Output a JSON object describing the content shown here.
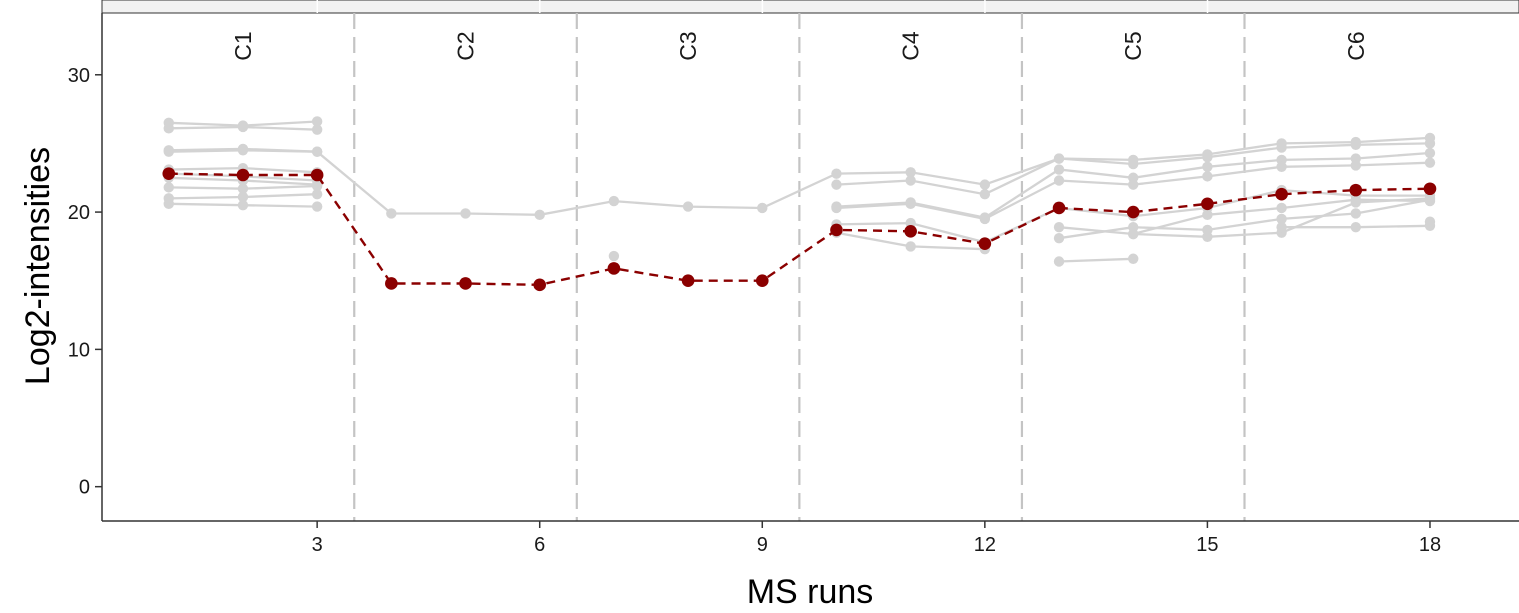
{
  "chart_data": {
    "type": "line",
    "title": "",
    "xlabel": "MS runs",
    "ylabel": "Log2-intensities",
    "xlim": [
      0.1,
      19.2
    ],
    "ylim": [
      -2.5,
      34.5
    ],
    "x_ticks": [
      3,
      6,
      9,
      12,
      15,
      18
    ],
    "y_ticks": [
      0,
      10,
      20,
      30
    ],
    "grid": false,
    "strip_band": true,
    "conditions": [
      {
        "label": "C1",
        "center": 2
      },
      {
        "label": "C2",
        "center": 5
      },
      {
        "label": "C3",
        "center": 8
      },
      {
        "label": "C4",
        "center": 11
      },
      {
        "label": "C5",
        "center": 14
      },
      {
        "label": "C6",
        "center": 17
      }
    ],
    "condition_boundaries": [
      3.5,
      6.5,
      9.5,
      12.5,
      15.5
    ],
    "feature_color": "#d3d3d3",
    "summary_color": "#8b0000",
    "features": [
      {
        "points": [
          [
            1,
            26.5
          ],
          [
            2,
            26.3
          ],
          [
            3,
            26.6
          ]
        ]
      },
      {
        "points": [
          [
            1,
            26.1
          ],
          [
            2,
            26.2
          ],
          [
            3,
            26.0
          ]
        ]
      },
      {
        "points": [
          [
            1,
            24.5
          ],
          [
            2,
            24.6
          ],
          [
            3,
            24.4
          ]
        ]
      },
      {
        "points": [
          [
            1,
            24.4
          ],
          [
            2,
            24.5
          ],
          [
            3,
            24.4
          ],
          [
            4,
            19.9
          ],
          [
            5,
            19.9
          ],
          [
            6,
            19.8
          ],
          [
            7,
            20.8
          ],
          [
            8,
            20.4
          ],
          [
            9,
            20.3
          ],
          [
            10,
            22.8
          ],
          [
            11,
            22.9
          ],
          [
            12,
            22.0
          ],
          [
            13,
            23.9
          ],
          [
            14,
            23.8
          ],
          [
            15,
            24.2
          ],
          [
            16,
            25.0
          ],
          [
            17,
            25.1
          ],
          [
            18,
            25.4
          ]
        ]
      },
      {
        "points": [
          [
            1,
            23.1
          ],
          [
            2,
            23.2
          ],
          [
            3,
            22.9
          ]
        ]
      },
      {
        "points": [
          [
            1,
            22.8
          ],
          [
            2,
            22.6
          ],
          [
            3,
            22.3
          ]
        ]
      },
      {
        "points": [
          [
            1,
            22.5
          ],
          [
            2,
            22.3
          ],
          [
            3,
            22.0
          ]
        ]
      },
      {
        "points": [
          [
            1,
            21.8
          ],
          [
            2,
            21.7
          ],
          [
            3,
            21.9
          ]
        ]
      },
      {
        "points": [
          [
            1,
            21.0
          ],
          [
            2,
            21.1
          ],
          [
            3,
            21.3
          ]
        ]
      },
      {
        "points": [
          [
            1,
            20.6
          ],
          [
            2,
            20.5
          ],
          [
            3,
            20.4
          ]
        ]
      },
      {
        "points": [
          [
            7,
            16.8
          ]
        ]
      },
      {
        "points": [
          [
            7,
            15.8
          ]
        ]
      },
      {
        "points": [
          [
            10,
            22.0
          ],
          [
            11,
            22.3
          ],
          [
            12,
            21.3
          ],
          [
            13,
            23.9
          ],
          [
            14,
            23.5
          ],
          [
            15,
            24.0
          ],
          [
            16,
            24.7
          ],
          [
            17,
            24.9
          ],
          [
            18,
            25.0
          ]
        ]
      },
      {
        "points": [
          [
            10,
            20.4
          ],
          [
            11,
            20.7
          ],
          [
            12,
            19.6
          ],
          [
            13,
            23.1
          ],
          [
            14,
            22.5
          ],
          [
            15,
            23.3
          ],
          [
            16,
            23.8
          ],
          [
            17,
            23.9
          ],
          [
            18,
            24.3
          ]
        ]
      },
      {
        "points": [
          [
            10,
            20.3
          ],
          [
            11,
            20.6
          ],
          [
            12,
            19.5
          ],
          [
            13,
            22.3
          ],
          [
            14,
            22.0
          ],
          [
            15,
            22.6
          ],
          [
            16,
            23.3
          ],
          [
            17,
            23.4
          ],
          [
            18,
            23.6
          ]
        ]
      },
      {
        "points": [
          [
            10,
            19.1
          ],
          [
            11,
            19.2
          ],
          [
            12,
            17.8
          ],
          [
            13,
            20.3
          ],
          [
            14,
            19.7
          ],
          [
            15,
            20.3
          ],
          [
            16,
            21.6
          ],
          [
            17,
            21.2
          ],
          [
            18,
            21.2
          ]
        ]
      },
      {
        "points": [
          [
            10,
            18.5
          ],
          [
            11,
            17.5
          ],
          [
            12,
            17.3
          ]
        ]
      },
      {
        "points": [
          [
            13,
            18.9
          ],
          [
            14,
            18.4
          ],
          [
            15,
            19.8
          ],
          [
            16,
            20.3
          ],
          [
            17,
            20.9
          ],
          [
            18,
            20.8
          ]
        ]
      },
      {
        "points": [
          [
            13,
            18.1
          ],
          [
            14,
            18.9
          ],
          [
            15,
            18.7
          ],
          [
            16,
            19.5
          ],
          [
            17,
            19.9
          ],
          [
            18,
            20.9
          ]
        ]
      },
      {
        "points": [
          [
            13,
            16.4
          ],
          [
            14,
            16.6
          ]
        ]
      },
      {
        "points": [
          [
            14,
            18.4
          ],
          [
            15,
            18.2
          ],
          [
            16,
            18.5
          ],
          [
            17,
            20.7
          ],
          [
            18,
            21.0
          ]
        ]
      },
      {
        "points": [
          [
            16,
            18.9
          ],
          [
            17,
            18.9
          ],
          [
            18,
            19.0
          ]
        ]
      },
      {
        "points": [
          [
            18,
            19.3
          ]
        ]
      }
    ],
    "summary": {
      "points": [
        [
          1,
          22.8
        ],
        [
          2,
          22.7
        ],
        [
          3,
          22.7
        ],
        [
          4,
          14.8
        ],
        [
          5,
          14.8
        ],
        [
          6,
          14.7
        ],
        [
          7,
          15.9
        ],
        [
          8,
          15.0
        ],
        [
          9,
          15.0
        ],
        [
          10,
          18.7
        ],
        [
          11,
          18.6
        ],
        [
          12,
          17.7
        ],
        [
          13,
          20.3
        ],
        [
          14,
          20.0
        ],
        [
          15,
          20.6
        ],
        [
          16,
          21.3
        ],
        [
          17,
          21.6
        ],
        [
          18,
          21.7
        ]
      ]
    }
  }
}
